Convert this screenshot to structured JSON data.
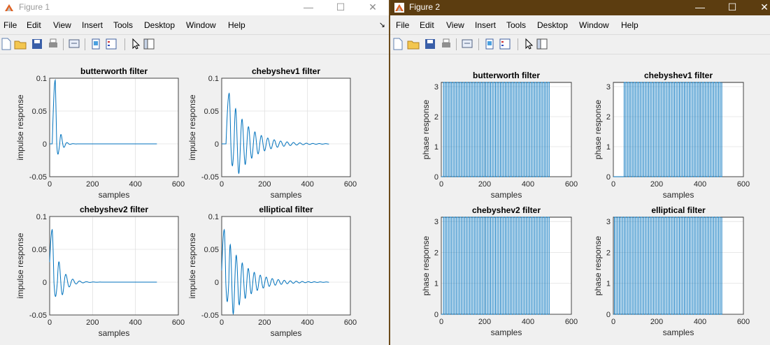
{
  "figures": [
    {
      "title": "Figure 1",
      "active": false,
      "menu": [
        "File",
        "Edit",
        "View",
        "Insert",
        "Tools",
        "Desktop",
        "Window",
        "Help"
      ],
      "window_controls": {
        "minimize": "—",
        "maximize": "☐",
        "close": "✕"
      },
      "toolbar_icons": [
        "new-figure-icon",
        "open-file-icon",
        "save-icon",
        "print-icon",
        "print-preview-icon",
        "link-plot-icon",
        "insert-legend-icon",
        "pointer-icon",
        "property-editor-icon"
      ],
      "plots": [
        {
          "title": "butterworth filter",
          "ylabel": "impulse response",
          "xlabel": "samples",
          "xlim": [
            0,
            600
          ],
          "ylim": [
            -0.05,
            0.1
          ],
          "xticks": [
            "0",
            "200",
            "400",
            "600"
          ],
          "yticks": [
            "-0.05",
            "0",
            "0.05",
            "0.1"
          ],
          "signal": {
            "kind": "impulse",
            "peak": 0.097,
            "peak_sample": 26,
            "trough": -0.04,
            "trough_sample": 40,
            "decay": 0.07,
            "period": 15,
            "length": 500
          }
        },
        {
          "title": "chebyshev1 filter",
          "ylabel": "impulse response",
          "xlabel": "samples",
          "xlim": [
            0,
            600
          ],
          "ylim": [
            -0.05,
            0.1
          ],
          "xticks": [
            "0",
            "200",
            "400",
            "600"
          ],
          "yticks": [
            "-0.05",
            "0",
            "0.05",
            "0.1"
          ],
          "signal": {
            "kind": "impulse",
            "peak": 0.077,
            "peak_sample": 35,
            "trough": -0.04,
            "trough_sample": 50,
            "decay": 0.012,
            "period": 15,
            "length": 500
          }
        },
        {
          "title": "chebyshev2 filter",
          "ylabel": "impulse response",
          "xlabel": "samples",
          "xlim": [
            0,
            600
          ],
          "ylim": [
            -0.05,
            0.1
          ],
          "xticks": [
            "0",
            "200",
            "400",
            "600"
          ],
          "yticks": [
            "-0.05",
            "0",
            "0.05",
            "0.1"
          ],
          "signal": {
            "kind": "impulse",
            "peak": 0.08,
            "peak_sample": 12,
            "trough": -0.035,
            "trough_sample": 28,
            "decay": 0.03,
            "period": 15,
            "length": 500
          }
        },
        {
          "title": "elliptical filter",
          "ylabel": "impulse response",
          "xlabel": "samples",
          "xlim": [
            0,
            600
          ],
          "ylim": [
            -0.05,
            0.1
          ],
          "xticks": [
            "0",
            "200",
            "400",
            "600"
          ],
          "yticks": [
            "-0.05",
            "0",
            "0.05",
            "0.1"
          ],
          "signal": {
            "kind": "impulse",
            "peak": 0.08,
            "peak_sample": 12,
            "trough": -0.035,
            "trough_sample": 26,
            "decay": 0.012,
            "period": 14,
            "length": 500
          }
        }
      ]
    },
    {
      "title": "Figure 2",
      "active": true,
      "menu": [
        "File",
        "Edit",
        "View",
        "Insert",
        "Tools",
        "Desktop",
        "Window",
        "Help"
      ],
      "window_controls": {
        "minimize": "—",
        "maximize": "☐",
        "close": "✕"
      },
      "toolbar_icons": [
        "new-figure-icon",
        "open-file-icon",
        "save-icon",
        "print-icon",
        "print-preview-icon",
        "link-plot-icon",
        "insert-legend-icon",
        "pointer-icon",
        "property-editor-icon"
      ],
      "plots": [
        {
          "title": "butterworth filter",
          "ylabel": "phase response",
          "xlabel": "samples",
          "xlim": [
            0,
            600
          ],
          "ylim": [
            0,
            3.14
          ],
          "xticks": [
            "0",
            "200",
            "400",
            "600"
          ],
          "yticks": [
            "0",
            "1",
            "2",
            "3"
          ],
          "signal": {
            "kind": "phase",
            "start": 10,
            "end": 500,
            "period": 15,
            "top": 3.14
          }
        },
        {
          "title": "chebyshev1 filter",
          "ylabel": "phase response",
          "xlabel": "samples",
          "xlim": [
            0,
            600
          ],
          "ylim": [
            0,
            3.14
          ],
          "xticks": [
            "0",
            "200",
            "400",
            "600"
          ],
          "yticks": [
            "0",
            "1",
            "2",
            "3"
          ],
          "signal": {
            "kind": "phase",
            "start": 50,
            "end": 500,
            "period": 15,
            "top": 3.14
          }
        },
        {
          "title": "chebyshev2 filter",
          "ylabel": "phase response",
          "xlabel": "samples",
          "xlim": [
            0,
            600
          ],
          "ylim": [
            0,
            3.14
          ],
          "xticks": [
            "0",
            "200",
            "400",
            "600"
          ],
          "yticks": [
            "0",
            "1",
            "2",
            "3"
          ],
          "signal": {
            "kind": "phase",
            "start": 10,
            "end": 500,
            "period": 15,
            "top": 3.14
          }
        },
        {
          "title": "elliptical filter",
          "ylabel": "phase response",
          "xlabel": "samples",
          "xlim": [
            0,
            600
          ],
          "ylim": [
            0,
            3.14
          ],
          "xticks": [
            "0",
            "200",
            "400",
            "600"
          ],
          "yticks": [
            "0",
            "1",
            "2",
            "3"
          ],
          "signal": {
            "kind": "phase",
            "start": 5,
            "end": 500,
            "period": 15,
            "top": 3.14
          }
        }
      ]
    }
  ],
  "colors": {
    "line": "#0072bd",
    "grid": "#e0e0e0",
    "axis": "#262626",
    "active_titlebar": "#5c3d10"
  }
}
